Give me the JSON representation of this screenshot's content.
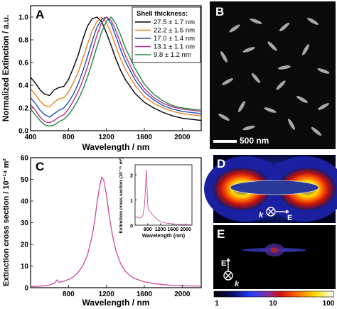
{
  "panels": {
    "a": {
      "letter": "A"
    },
    "b": {
      "letter": "B",
      "scalebar": "500 nm"
    },
    "c": {
      "letter": "C"
    },
    "d": {
      "letter": "D",
      "k_label": "k",
      "e_label": "E"
    },
    "e": {
      "letter": "E",
      "k_label": "k",
      "e_label": "E"
    }
  },
  "colorbar": {
    "labels": [
      "1",
      "10",
      "100"
    ]
  },
  "chart_data": [
    {
      "type": "line",
      "panel": "A",
      "xlabel": "Wavelength / nm",
      "ylabel": "Normalized Extinction / a.u.",
      "xlim": [
        400,
        2200
      ],
      "ylim": [
        0.0,
        1.1
      ],
      "x_ticks": [
        400,
        800,
        1200,
        1600,
        2000
      ],
      "x_tick_labels": [
        "400",
        "800",
        "1200",
        "1600",
        "2000"
      ],
      "y_ticks": [
        0.0,
        0.2,
        0.4,
        0.6,
        0.8,
        1.0
      ],
      "y_tick_labels": [
        "0.0",
        "0.2",
        "0.4",
        "0.6",
        "0.8",
        "1.0"
      ],
      "legend_title": "Shell thickness:",
      "legend_position": "top-right",
      "series": [
        {
          "name": "27.5 ± 1.7 nm",
          "color": "#000000",
          "x": [
            400,
            450,
            500,
            550,
            600,
            650,
            700,
            750,
            800,
            850,
            900,
            950,
            1000,
            1050,
            1100,
            1150,
            1200,
            1250,
            1300,
            1350,
            1400,
            1500,
            1600,
            1700,
            1800,
            1900,
            2000,
            2100,
            2200
          ],
          "y": [
            0.47,
            0.42,
            0.36,
            0.32,
            0.31,
            0.36,
            0.38,
            0.39,
            0.45,
            0.55,
            0.66,
            0.8,
            0.92,
            0.985,
            1.0,
            0.96,
            0.86,
            0.75,
            0.63,
            0.53,
            0.45,
            0.33,
            0.25,
            0.2,
            0.16,
            0.13,
            0.11,
            0.1,
            0.09
          ]
        },
        {
          "name": "22.2 ± 1.5 nm",
          "color": "#e8821e",
          "x": [
            400,
            450,
            500,
            550,
            600,
            650,
            700,
            750,
            800,
            850,
            900,
            950,
            1000,
            1050,
            1100,
            1150,
            1200,
            1250,
            1300,
            1350,
            1400,
            1500,
            1600,
            1700,
            1800,
            1900,
            2000,
            2100,
            2200
          ],
          "y": [
            0.37,
            0.32,
            0.26,
            0.22,
            0.21,
            0.25,
            0.28,
            0.29,
            0.34,
            0.42,
            0.51,
            0.63,
            0.76,
            0.88,
            0.96,
            1.0,
            0.95,
            0.86,
            0.74,
            0.63,
            0.54,
            0.4,
            0.3,
            0.24,
            0.2,
            0.17,
            0.15,
            0.14,
            0.13
          ]
        },
        {
          "name": "17.0 ± 1.4 nm",
          "color": "#1f4fbf",
          "x": [
            400,
            450,
            500,
            550,
            600,
            650,
            700,
            750,
            800,
            850,
            900,
            950,
            1000,
            1050,
            1100,
            1150,
            1200,
            1250,
            1300,
            1350,
            1400,
            1500,
            1600,
            1700,
            1800,
            1900,
            2000,
            2100,
            2200
          ],
          "y": [
            0.29,
            0.24,
            0.18,
            0.14,
            0.12,
            0.15,
            0.18,
            0.2,
            0.25,
            0.32,
            0.41,
            0.52,
            0.65,
            0.79,
            0.91,
            0.98,
            1.0,
            0.94,
            0.83,
            0.71,
            0.61,
            0.45,
            0.34,
            0.27,
            0.22,
            0.19,
            0.17,
            0.16,
            0.15
          ]
        },
        {
          "name": "13.1 ± 1.1 nm",
          "color": "#b8308a",
          "x": [
            400,
            450,
            500,
            550,
            600,
            650,
            700,
            750,
            800,
            850,
            900,
            950,
            1000,
            1050,
            1100,
            1150,
            1200,
            1250,
            1300,
            1350,
            1400,
            1500,
            1600,
            1700,
            1800,
            1900,
            2000,
            2100,
            2200
          ],
          "y": [
            0.23,
            0.18,
            0.12,
            0.08,
            0.07,
            0.09,
            0.12,
            0.14,
            0.19,
            0.26,
            0.34,
            0.44,
            0.56,
            0.7,
            0.84,
            0.95,
            1.0,
            0.97,
            0.88,
            0.77,
            0.66,
            0.49,
            0.37,
            0.29,
            0.24,
            0.21,
            0.19,
            0.18,
            0.17
          ]
        },
        {
          "name": "9.8 ± 1.2 nm",
          "color": "#1e8a3c",
          "x": [
            400,
            450,
            500,
            550,
            600,
            650,
            700,
            750,
            800,
            850,
            900,
            950,
            1000,
            1050,
            1100,
            1150,
            1200,
            1250,
            1300,
            1350,
            1400,
            1500,
            1600,
            1700,
            1800,
            1900,
            2000,
            2100,
            2200
          ],
          "y": [
            0.19,
            0.14,
            0.09,
            0.05,
            0.04,
            0.05,
            0.08,
            0.1,
            0.14,
            0.2,
            0.27,
            0.36,
            0.47,
            0.6,
            0.74,
            0.87,
            0.96,
            1.0,
            0.94,
            0.84,
            0.73,
            0.55,
            0.41,
            0.32,
            0.26,
            0.22,
            0.2,
            0.19,
            0.18
          ]
        }
      ]
    },
    {
      "type": "line",
      "panel": "C",
      "xlabel": "Wavelength / nm",
      "ylabel": "Extinction cross section / 10⁻¹⁴ m²",
      "xlim": [
        400,
        2200
      ],
      "ylim": [
        0,
        60
      ],
      "x_ticks": [
        800,
        1200,
        1600,
        2000
      ],
      "x_tick_labels": [
        "800",
        "1200",
        "1600",
        "2000"
      ],
      "y_ticks": [
        0,
        10,
        20,
        30,
        40,
        50,
        60
      ],
      "y_tick_labels": [
        "0",
        "10",
        "20",
        "30",
        "40",
        "50",
        "60"
      ],
      "series": [
        {
          "color": "#d0479f",
          "x": [
            400,
            500,
            600,
            650,
            680,
            700,
            750,
            800,
            850,
            900,
            950,
            1000,
            1050,
            1080,
            1100,
            1130,
            1150,
            1170,
            1200,
            1230,
            1260,
            1300,
            1350,
            1400,
            1450,
            1500,
            1600,
            1700,
            1800,
            1900,
            2000,
            2100,
            2200
          ],
          "y": [
            0.5,
            0.7,
            1.2,
            2.0,
            3.6,
            2.5,
            3.0,
            3.8,
            5.0,
            7.0,
            10.0,
            15.0,
            24.0,
            32.0,
            39.0,
            47.0,
            51.0,
            50.0,
            43.0,
            33.0,
            25.0,
            17.0,
            11.0,
            7.5,
            5.5,
            4.2,
            2.7,
            1.9,
            1.4,
            1.1,
            0.9,
            0.8,
            0.7
          ]
        }
      ],
      "inset": {
        "xlabel": "Wavelength (nm)",
        "ylabel": "Extinction cross section (10⁻¹⁵ m²)",
        "xlim": [
          400,
          2200
        ],
        "ylim": [
          0,
          2.4
        ],
        "x_ticks": [
          800,
          1200,
          1600,
          2000
        ],
        "x_tick_labels": [
          "800",
          "1200",
          "1600",
          "2000"
        ],
        "y_ticks": [
          0,
          1,
          2
        ],
        "y_tick_labels": [
          "0",
          "1",
          "2"
        ],
        "series": [
          {
            "color": "#d0479f",
            "x": [
              400,
              500,
              550,
              600,
              650,
              700,
              730,
              750,
              770,
              790,
              810,
              850,
              900,
              950,
              1000,
              1100,
              1200,
              1400,
              1600,
              1800,
              2000,
              2200
            ],
            "y": [
              0.35,
              0.3,
              0.28,
              0.3,
              0.4,
              0.8,
              1.5,
              2.2,
              1.9,
              1.1,
              0.7,
              0.55,
              0.5,
              0.42,
              0.35,
              0.22,
              0.14,
              0.08,
              0.05,
              0.03,
              0.02,
              0.02
            ]
          }
        ]
      }
    }
  ]
}
